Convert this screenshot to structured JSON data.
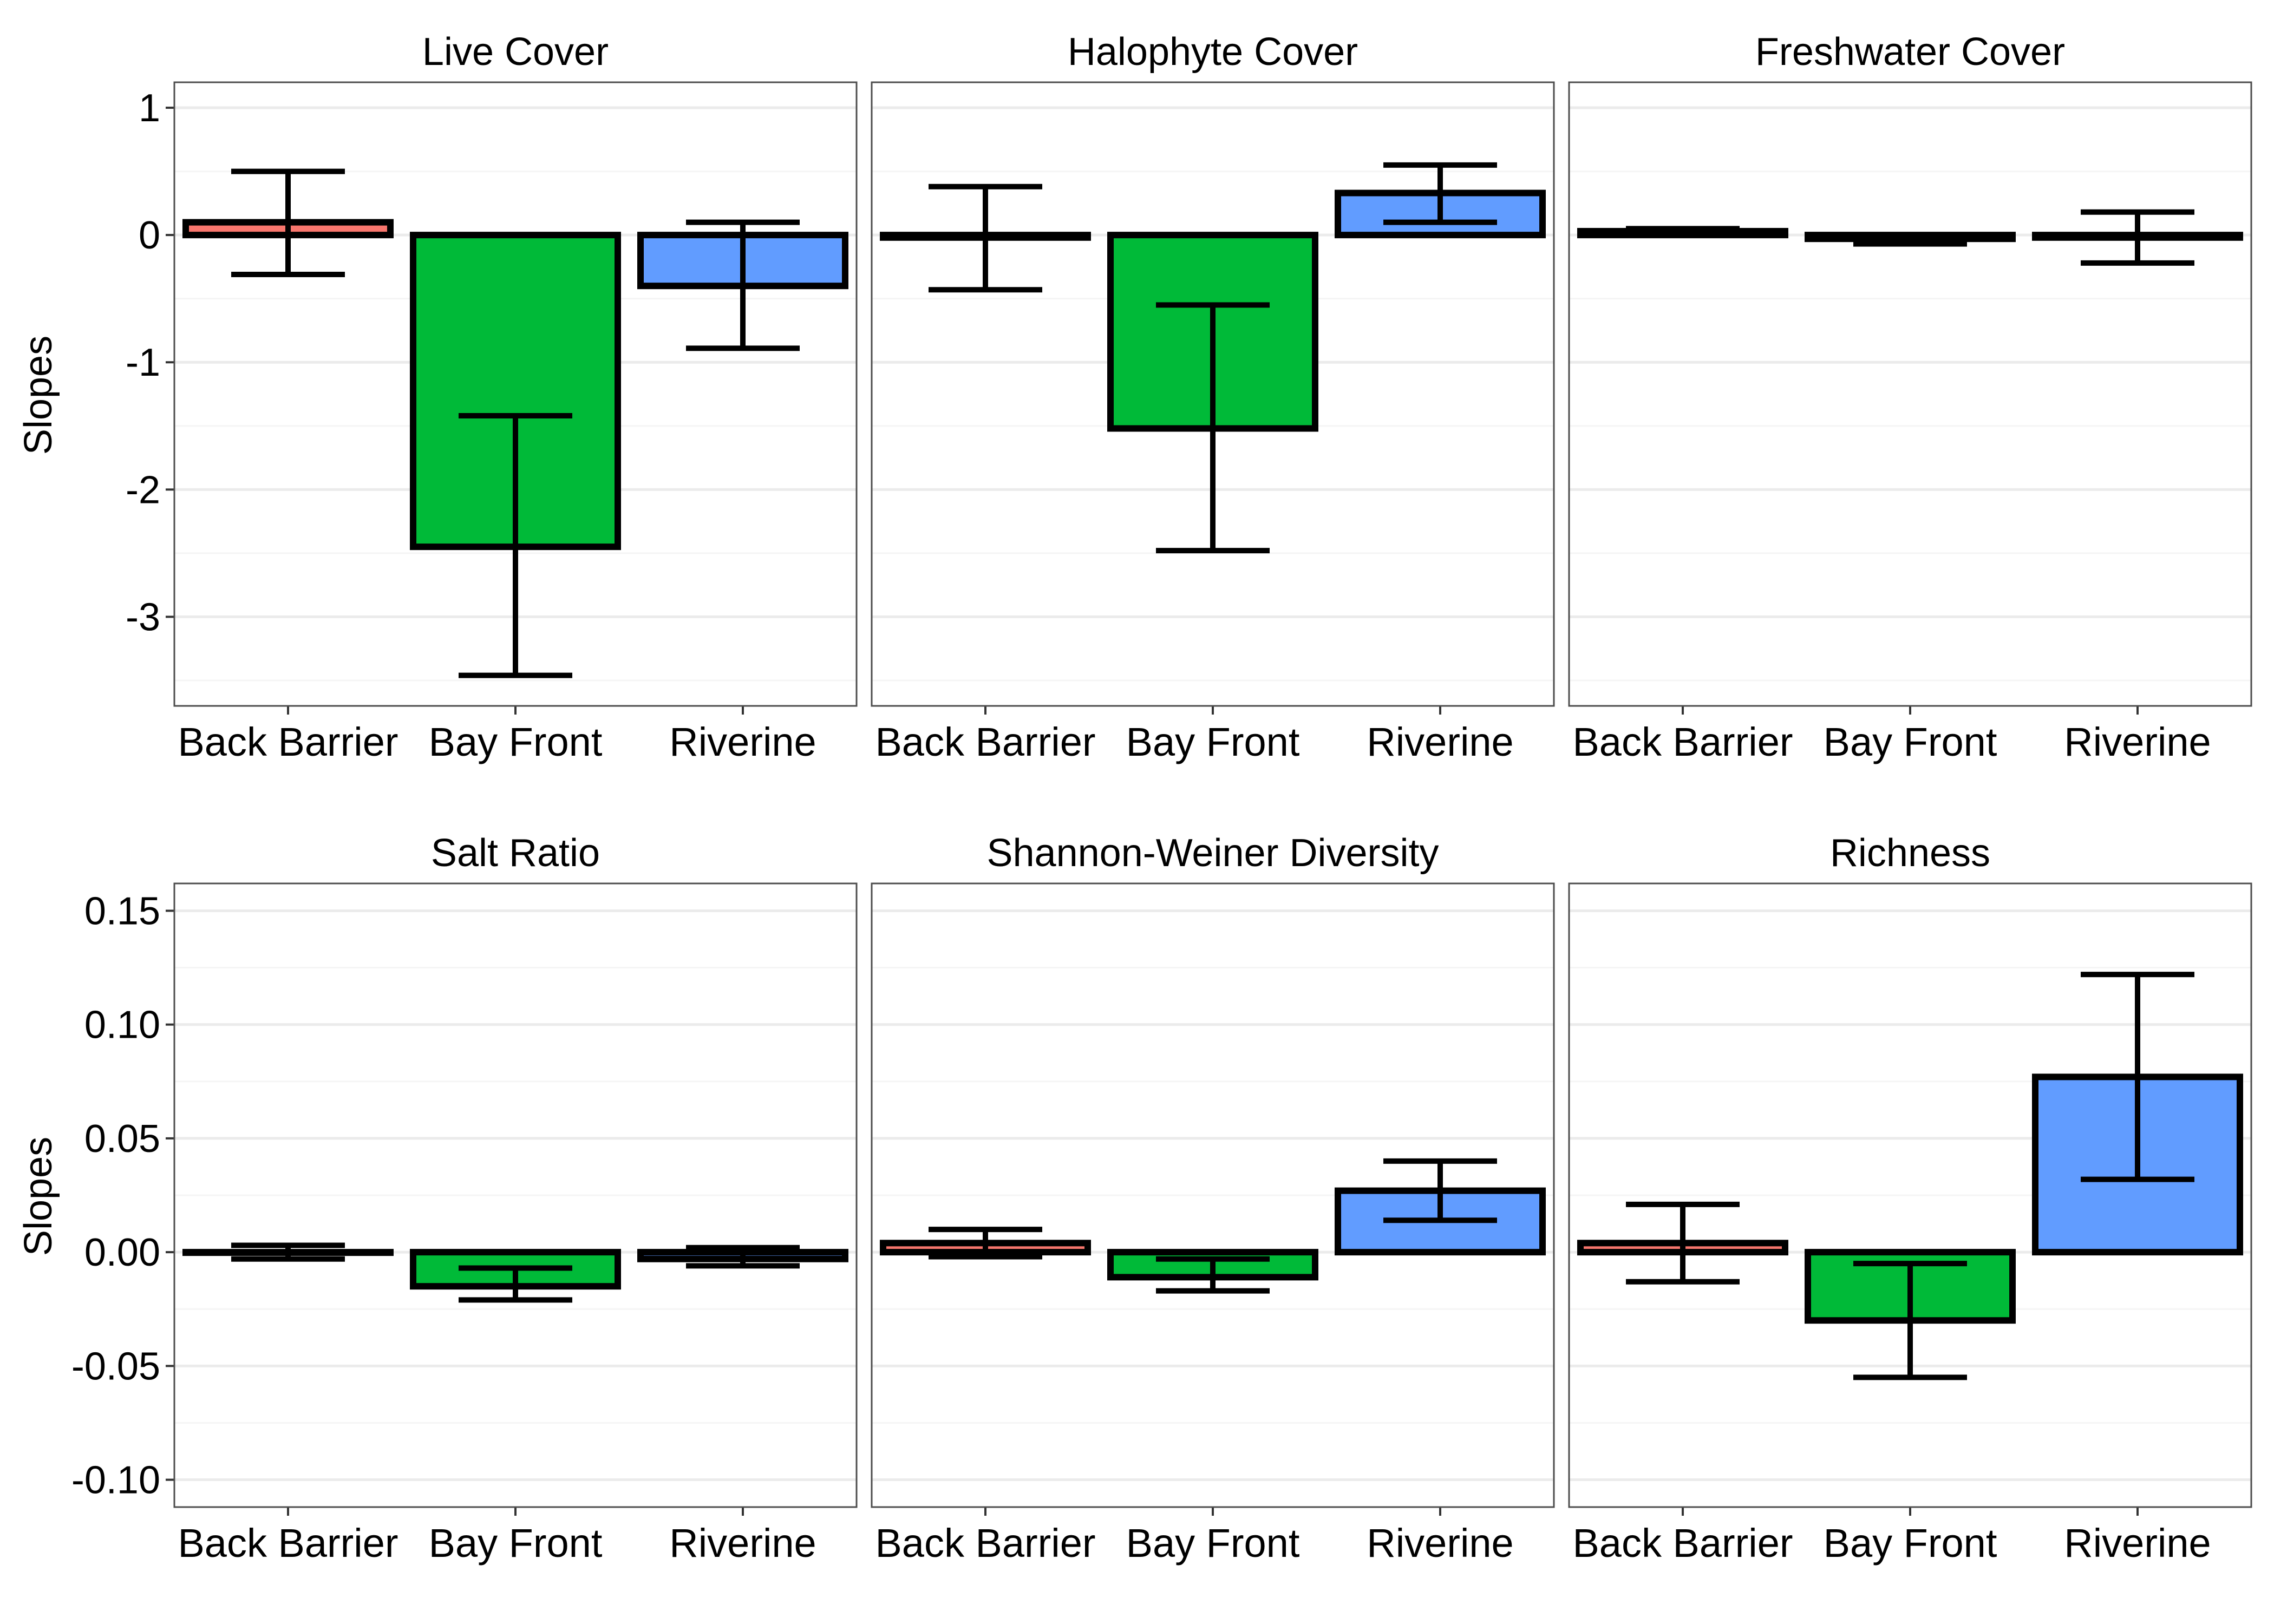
{
  "figure": {
    "y_axis_title": "Slopes"
  },
  "colors": {
    "Back Barrier": "#F8766D",
    "Bay Front": "#00BA38",
    "Riverine": "#619CFF",
    "bar_outline": "#000000",
    "panel_border": "#4D4D4D",
    "grid_major": "#EBEBEB",
    "grid_minor": "#F5F5F5"
  },
  "chart_data": [
    {
      "type": "bar",
      "title": "Live Cover",
      "categories": [
        "Back Barrier",
        "Bay Front",
        "Riverine"
      ],
      "values": [
        0.1,
        -2.45,
        -0.4
      ],
      "error_low": [
        -0.31,
        -3.46,
        -0.89
      ],
      "error_high": [
        0.5,
        -1.42,
        0.1
      ],
      "ylim": [
        -3.7,
        1.2
      ],
      "yticks": [
        1,
        0,
        -1,
        -2,
        -3
      ],
      "ytick_labels": [
        "1",
        "0",
        "-1",
        "-2",
        "-3"
      ],
      "ylabel": "Slopes",
      "grid": true
    },
    {
      "type": "bar",
      "title": "Halophyte Cover",
      "categories": [
        "Back Barrier",
        "Bay Front",
        "Riverine"
      ],
      "values": [
        -0.02,
        -1.52,
        0.33
      ],
      "error_low": [
        -0.43,
        -2.48,
        0.1
      ],
      "error_high": [
        0.38,
        -0.55,
        0.55
      ],
      "ylim": [
        -3.7,
        1.2
      ],
      "grid": true
    },
    {
      "type": "bar",
      "title": "Freshwater Cover",
      "categories": [
        "Back Barrier",
        "Bay Front",
        "Riverine"
      ],
      "values": [
        0.03,
        -0.03,
        -0.02
      ],
      "error_low": [
        0.0,
        -0.07,
        -0.22
      ],
      "error_high": [
        0.05,
        0.0,
        0.18
      ],
      "ylim": [
        -3.7,
        1.2
      ],
      "grid": true
    },
    {
      "type": "bar",
      "title": "Salt Ratio",
      "categories": [
        "Back Barrier",
        "Bay Front",
        "Riverine"
      ],
      "values": [
        0.0,
        -0.015,
        -0.003
      ],
      "error_low": [
        -0.003,
        -0.021,
        -0.006
      ],
      "error_high": [
        0.003,
        -0.007,
        0.002
      ],
      "ylim": [
        -0.112,
        0.162
      ],
      "yticks": [
        0.15,
        0.1,
        0.05,
        0.0,
        -0.05,
        -0.1
      ],
      "ytick_labels": [
        "0.15",
        "0.10",
        "0.05",
        "0.00",
        "-0.05",
        "-0.10"
      ],
      "ylabel": "Slopes",
      "grid": true
    },
    {
      "type": "bar",
      "title": "Shannon-Weiner Diversity",
      "categories": [
        "Back Barrier",
        "Bay Front",
        "Riverine"
      ],
      "values": [
        0.004,
        -0.011,
        0.027
      ],
      "error_low": [
        -0.002,
        -0.017,
        0.014
      ],
      "error_high": [
        0.01,
        -0.003,
        0.04
      ],
      "ylim": [
        -0.112,
        0.162
      ],
      "grid": true
    },
    {
      "type": "bar",
      "title": "Richness",
      "categories": [
        "Back Barrier",
        "Bay Front",
        "Riverine"
      ],
      "values": [
        0.004,
        -0.03,
        0.077
      ],
      "error_low": [
        -0.013,
        -0.055,
        0.032
      ],
      "error_high": [
        0.021,
        -0.005,
        0.122
      ],
      "ylim": [
        -0.112,
        0.162
      ],
      "grid": true
    }
  ]
}
